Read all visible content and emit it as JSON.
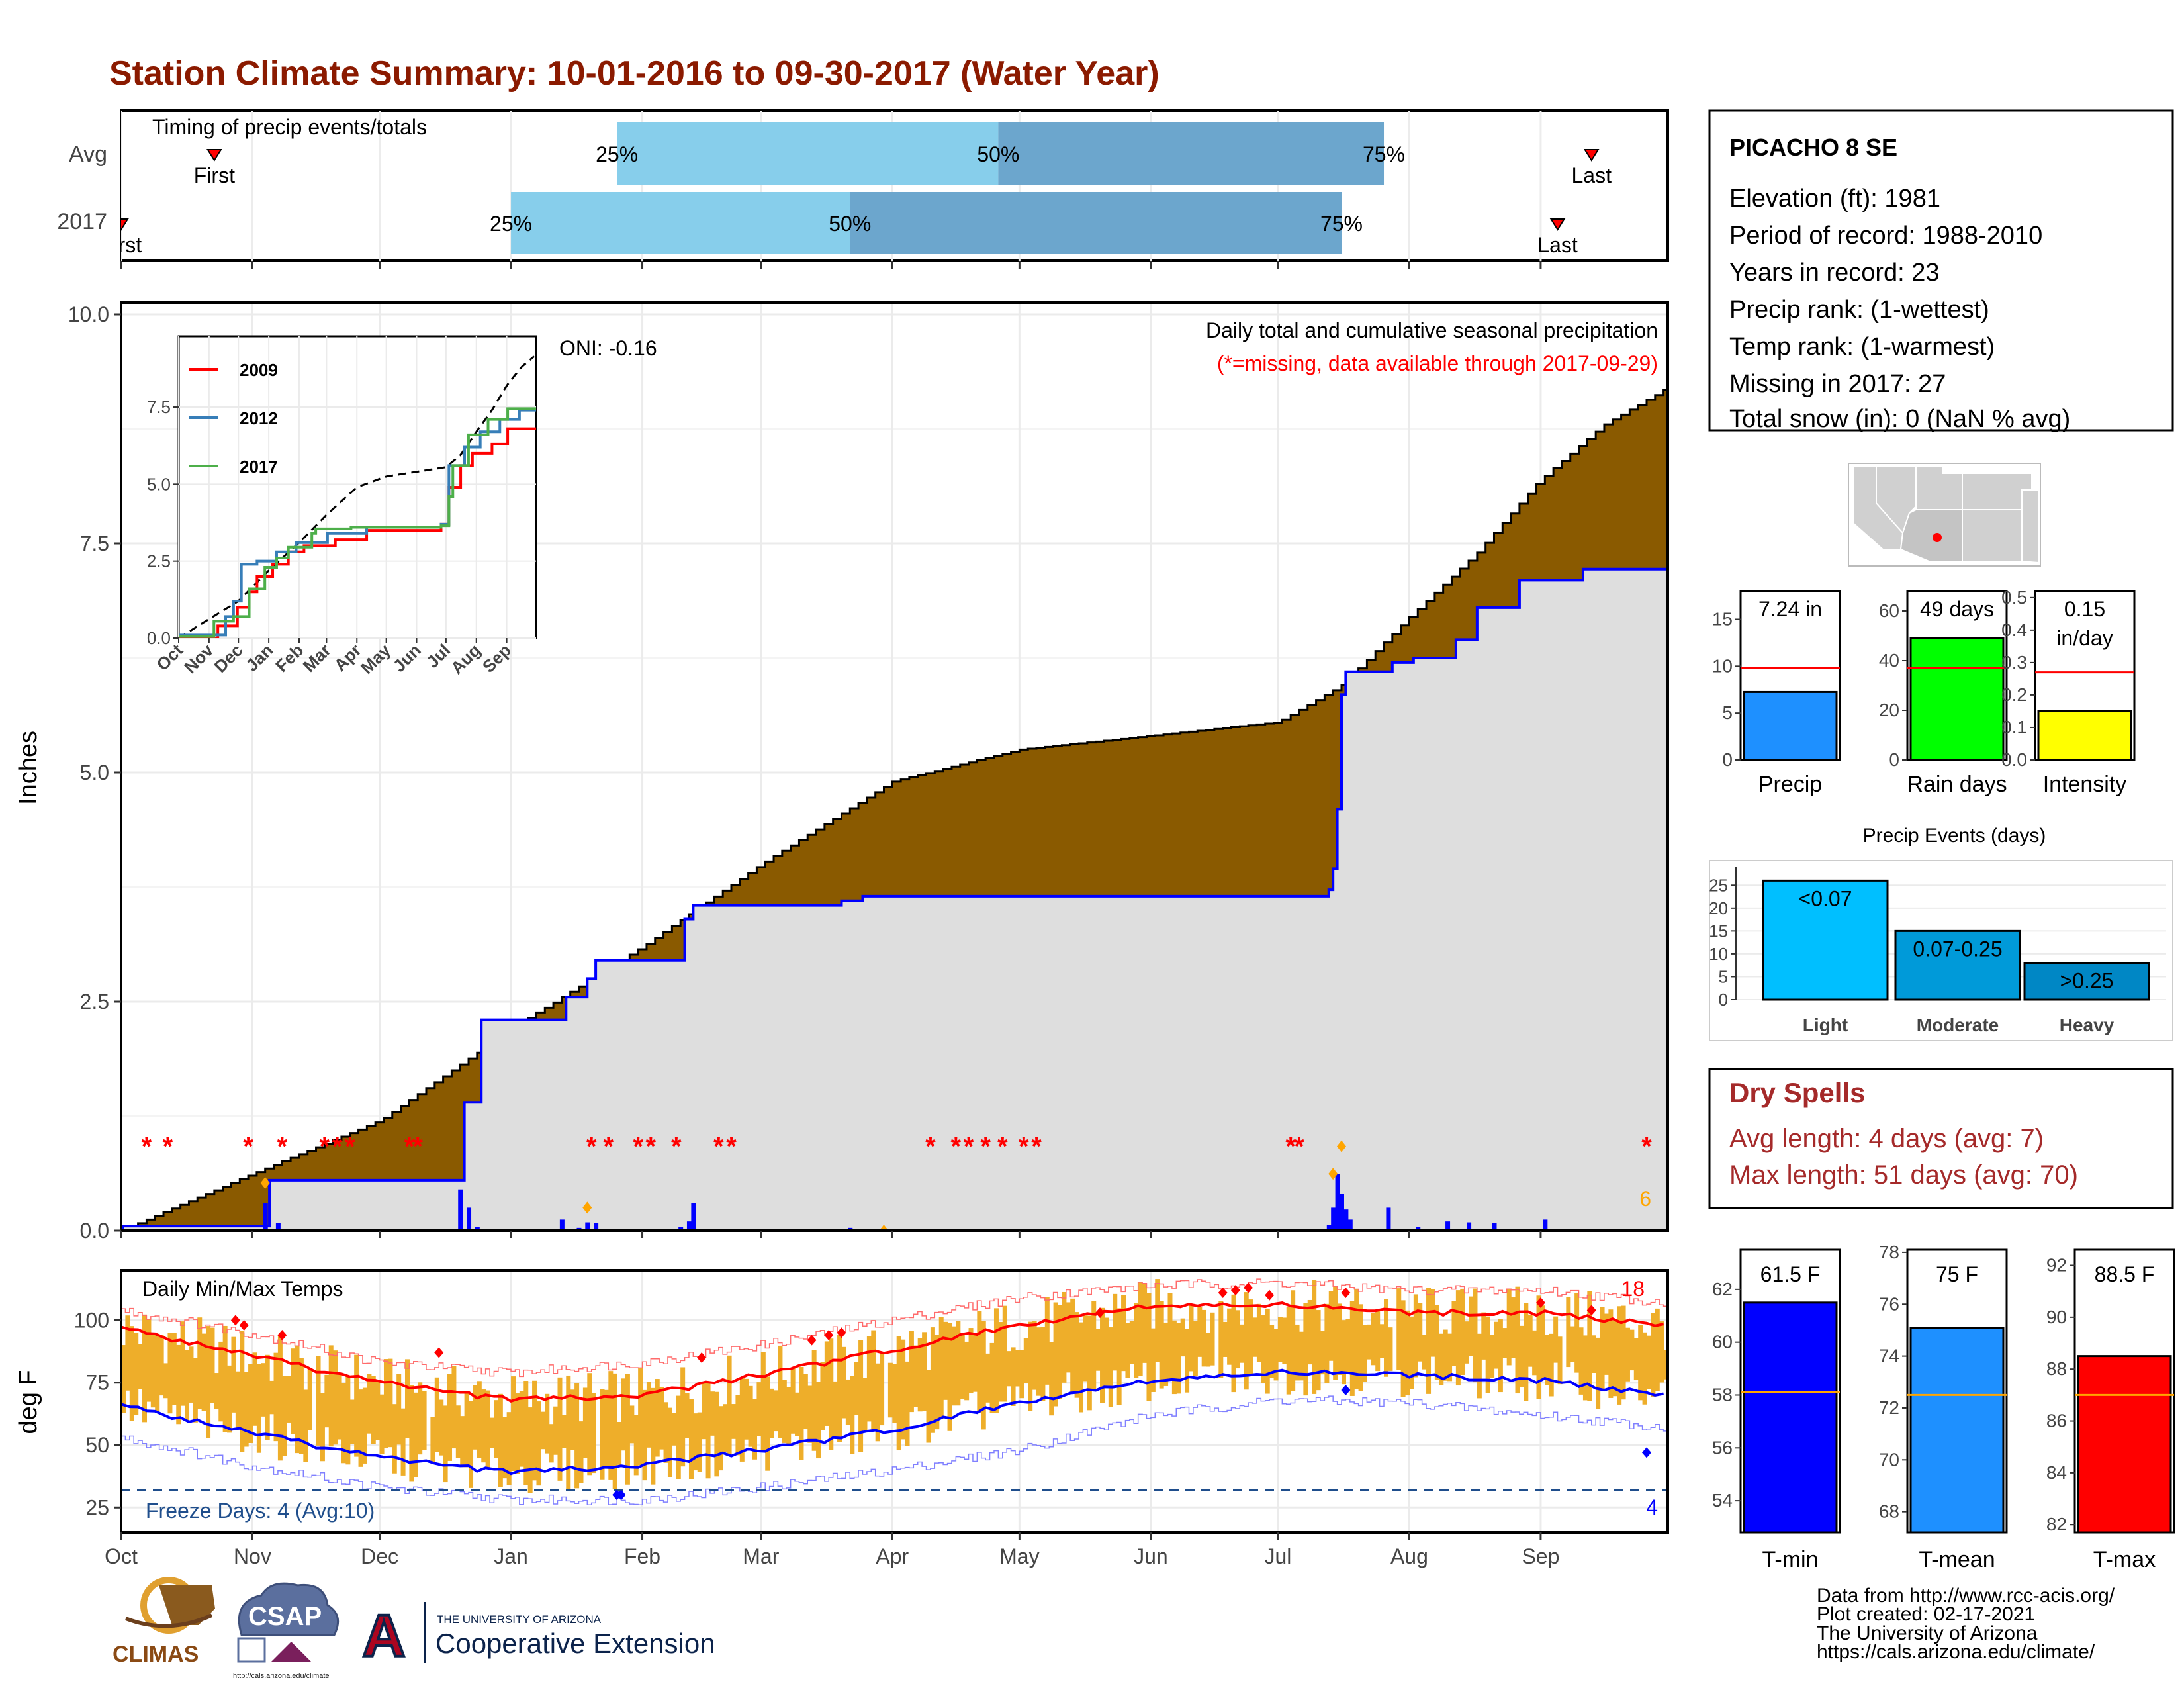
{
  "title": "Station Climate Summary: 10-01-2016 to 09-30-2017 (Water Year)",
  "colors": {
    "title": "#8b1a00",
    "precip_fill": "#8a5a00",
    "grey_fill": "#dedede",
    "blue": "#0000ff",
    "red": "#ff0000",
    "orange": "#ffa500",
    "temp_bar": "#eeae2a",
    "quart_light": "#87ceeb",
    "quart_dark": "#6ca6cd",
    "freeze": "#1f4e8c"
  },
  "timing_panel": {
    "title": "Timing of precip events/totals",
    "rows": [
      {
        "label": "Avg",
        "first_label": "First",
        "last_label": "Last",
        "first_doy": 22,
        "q25_doy": 117,
        "q50_doy": 207,
        "q75_doy": 298,
        "last_doy": 347
      },
      {
        "label": "2017",
        "first_label": "First",
        "last_label": "Last",
        "first_doy": 0,
        "q25_doy": 92,
        "q50_doy": 172,
        "q75_doy": 288,
        "last_doy": 339
      }
    ],
    "q25_label": "25%",
    "q50_label": "50%",
    "q75_label": "75%"
  },
  "main_panel": {
    "note1": "Daily total and cumulative seasonal precipitation",
    "note2": "(*=missing, data available through 2017-09-29)",
    "oni": "ONI: -0.16",
    "ylabel": "Inches",
    "yticks": [
      "0.0",
      "2.5",
      "5.0",
      "7.5",
      "10.0"
    ],
    "corner_count": "6",
    "missing_doy": [
      6,
      11,
      30,
      38,
      48,
      51,
      54,
      68,
      70,
      111,
      115,
      122,
      125,
      131,
      141,
      144,
      191,
      197,
      200,
      204,
      208,
      213,
      216,
      276,
      278,
      360
    ]
  },
  "months": [
    "Oct",
    "Nov",
    "Dec",
    "Jan",
    "Feb",
    "Mar",
    "Apr",
    "May",
    "Jun",
    "Jul",
    "Aug",
    "Sep"
  ],
  "inset": {
    "yticks": [
      "0.0",
      "2.5",
      "5.0",
      "7.5"
    ],
    "legend": [
      {
        "name": "2009",
        "color": "#ff0000"
      },
      {
        "name": "2012",
        "color": "#377eb8"
      },
      {
        "name": "2017",
        "color": "#4daf4a"
      }
    ]
  },
  "temp_panel": {
    "title": "Daily Min/Max Temps",
    "ylabel": "deg F",
    "yticks": [
      "25",
      "50",
      "75",
      "100"
    ],
    "freeze_label": "Freeze Days: 4 (Avg:10)",
    "count_hot": "18",
    "count_cold": "4"
  },
  "station": {
    "name": "PICACHO 8 SE",
    "lines": [
      "Elevation (ft): 1981",
      "Period of record: 1988-2010",
      "Years in record: 23",
      "Precip rank:  (1-wettest)",
      "Temp rank:  (1-warmest)",
      "Missing in 2017: 27",
      "Total snow (in): 0 (NaN % avg)"
    ]
  },
  "mini_bars": [
    {
      "label": "Precip",
      "value_label": "7.24 in",
      "value": 7.24,
      "avg": 9.8,
      "ymax": 18,
      "ticks": [
        "0",
        "5",
        "10",
        "15"
      ],
      "tickvals": [
        0,
        5,
        10,
        15
      ],
      "color": "#1e90ff"
    },
    {
      "label": "Rain days",
      "value_label": "49 days",
      "value": 49,
      "avg": 37,
      "ymax": 68,
      "ticks": [
        "0",
        "20",
        "40",
        "60"
      ],
      "tickvals": [
        0,
        20,
        40,
        60
      ],
      "color": "#00ff00"
    },
    {
      "label": "Intensity",
      "value_label": "0.15",
      "value_label2": "in/day",
      "value": 0.15,
      "avg": 0.27,
      "ymax": 0.52,
      "ticks": [
        "0.0",
        "0.1",
        "0.2",
        "0.3",
        "0.4",
        "0.5"
      ],
      "tickvals": [
        0,
        0.1,
        0.2,
        0.3,
        0.4,
        0.5
      ],
      "color": "#ffff00"
    }
  ],
  "precip_events": {
    "title": "Precip Events (days)",
    "categories": [
      "Light",
      "Moderate",
      "Heavy"
    ],
    "bar_labels": [
      "<0.07",
      "0.07-0.25",
      ">0.25"
    ],
    "values": [
      26,
      15,
      8
    ],
    "ticks": [
      "0",
      "5",
      "10",
      "15",
      "20",
      "25"
    ],
    "colors": [
      "#00bfff",
      "#009ad9",
      "#0087c5"
    ]
  },
  "dry_spells": {
    "title": "Dry Spells",
    "line1": "Avg length: 4 days (avg: 7)",
    "line2": "Max length: 51 days (avg: 70)"
  },
  "temp_bars": [
    {
      "label": "T-min",
      "value_label": "61.5 F",
      "value": 61.5,
      "avg": 58.1,
      "ymin": 52.8,
      "ymax": 63.5,
      "ticks": [
        "54",
        "56",
        "58",
        "60",
        "62"
      ],
      "tickvals": [
        54,
        56,
        58,
        60,
        62
      ],
      "color": "#0000ff"
    },
    {
      "label": "T-mean",
      "value_label": "75 F",
      "value": 75.1,
      "avg": 72.5,
      "ymin": 67.2,
      "ymax": 78.1,
      "ticks": [
        "68",
        "70",
        "72",
        "74",
        "76",
        "78"
      ],
      "tickvals": [
        68,
        70,
        72,
        74,
        76,
        78
      ],
      "color": "#1e90ff"
    },
    {
      "label": "T-max",
      "value_label": "88.5 F",
      "value": 88.5,
      "avg": 87.0,
      "ymin": 81.7,
      "ymax": 92.6,
      "ticks": [
        "82",
        "84",
        "86",
        "88",
        "90",
        "92"
      ],
      "tickvals": [
        82,
        84,
        86,
        88,
        90,
        92
      ],
      "color": "#ff0000"
    }
  ],
  "footer": {
    "credits": [
      "Data from http://www.rcc-acis.org/",
      "Plot created: 02-17-2021",
      "The University of Arizona",
      "https://cals.arizona.edu/climate/"
    ],
    "climas": "CLIMAS",
    "csap": "CSAP",
    "csap_url": "http://cals.arizona.edu/climate",
    "ua_small": "THE UNIVERSITY OF ARIZONA",
    "ua_big": "Cooperative Extension",
    "ua_letter": "A"
  },
  "chart_data": {
    "type": "area",
    "xlabel": "",
    "ylabel": "Inches",
    "ylim": [
      0,
      10
    ],
    "cumulative_avg": [
      [
        0,
        0.0
      ],
      [
        30,
        0.6
      ],
      [
        61,
        1.2
      ],
      [
        92,
        2.2
      ],
      [
        123,
        3.1
      ],
      [
        151,
        4.0
      ],
      [
        182,
        4.9
      ],
      [
        212,
        5.25
      ],
      [
        243,
        5.4
      ],
      [
        273,
        5.55
      ],
      [
        288,
        5.95
      ],
      [
        304,
        6.7
      ],
      [
        320,
        7.4
      ],
      [
        335,
        8.2
      ],
      [
        350,
        8.8
      ],
      [
        365,
        9.2
      ]
    ],
    "cumulative_2017": [
      [
        0,
        0.05
      ],
      [
        34,
        0.05
      ],
      [
        35,
        0.55
      ],
      [
        80,
        0.55
      ],
      [
        81,
        1.4
      ],
      [
        84,
        1.4
      ],
      [
        85,
        2.3
      ],
      [
        104,
        2.3
      ],
      [
        105,
        2.55
      ],
      [
        110,
        2.75
      ],
      [
        112,
        2.95
      ],
      [
        132,
        2.95
      ],
      [
        133,
        3.4
      ],
      [
        135,
        3.55
      ],
      [
        170,
        3.6
      ],
      [
        175,
        3.65
      ],
      [
        280,
        3.65
      ],
      [
        285,
        3.72
      ],
      [
        286,
        3.95
      ],
      [
        287,
        4.6
      ],
      [
        288,
        5.85
      ],
      [
        289,
        6.1
      ],
      [
        300,
        6.2
      ],
      [
        305,
        6.25
      ],
      [
        315,
        6.45
      ],
      [
        320,
        6.8
      ],
      [
        330,
        7.1
      ],
      [
        345,
        7.22
      ],
      [
        365,
        7.24
      ]
    ],
    "daily_2017": [
      [
        0,
        0.04
      ],
      [
        34,
        0.3
      ],
      [
        37,
        0.08
      ],
      [
        80,
        0.45
      ],
      [
        82,
        0.25
      ],
      [
        84,
        0.04
      ],
      [
        104,
        0.12
      ],
      [
        108,
        0.03
      ],
      [
        110,
        0.09
      ],
      [
        112,
        0.08
      ],
      [
        132,
        0.04
      ],
      [
        134,
        0.1
      ],
      [
        135,
        0.3
      ],
      [
        172,
        0.03
      ],
      [
        285,
        0.06
      ],
      [
        286,
        0.25
      ],
      [
        287,
        0.62
      ],
      [
        288,
        0.4
      ],
      [
        289,
        0.23
      ],
      [
        290,
        0.12
      ],
      [
        299,
        0.25
      ],
      [
        306,
        0.04
      ],
      [
        313,
        0.1
      ],
      [
        318,
        0.09
      ],
      [
        324,
        0.08
      ],
      [
        336,
        0.12
      ]
    ],
    "temperature": {
      "ylabel": "deg F",
      "ylim": [
        15,
        120
      ],
      "avg_max": [
        [
          0,
          97
        ],
        [
          30,
          86
        ],
        [
          61,
          75
        ],
        [
          92,
          68
        ],
        [
          123,
          70
        ],
        [
          151,
          78
        ],
        [
          182,
          88
        ],
        [
          212,
          98
        ],
        [
          243,
          106
        ],
        [
          273,
          106
        ],
        [
          304,
          103
        ],
        [
          335,
          103
        ],
        [
          365,
          98
        ]
      ],
      "avg_min": [
        [
          0,
          66
        ],
        [
          30,
          55
        ],
        [
          61,
          45
        ],
        [
          92,
          39
        ],
        [
          123,
          42
        ],
        [
          151,
          48
        ],
        [
          182,
          56
        ],
        [
          212,
          67
        ],
        [
          243,
          76
        ],
        [
          273,
          79
        ],
        [
          304,
          78
        ],
        [
          335,
          76
        ],
        [
          365,
          70
        ]
      ],
      "record_max": [
        [
          0,
          104
        ],
        [
          30,
          95
        ],
        [
          61,
          83
        ],
        [
          92,
          79
        ],
        [
          123,
          83
        ],
        [
          151,
          90
        ],
        [
          182,
          100
        ],
        [
          212,
          109
        ],
        [
          243,
          114
        ],
        [
          273,
          115
        ],
        [
          304,
          112
        ],
        [
          335,
          112
        ],
        [
          365,
          107
        ]
      ],
      "record_min": [
        [
          0,
          53
        ],
        [
          30,
          42
        ],
        [
          61,
          33
        ],
        [
          92,
          28
        ],
        [
          123,
          28
        ],
        [
          151,
          33
        ],
        [
          182,
          40
        ],
        [
          212,
          48
        ],
        [
          243,
          62
        ],
        [
          273,
          68
        ],
        [
          304,
          67
        ],
        [
          335,
          62
        ],
        [
          365,
          57
        ]
      ],
      "freeze_line": 32
    }
  }
}
